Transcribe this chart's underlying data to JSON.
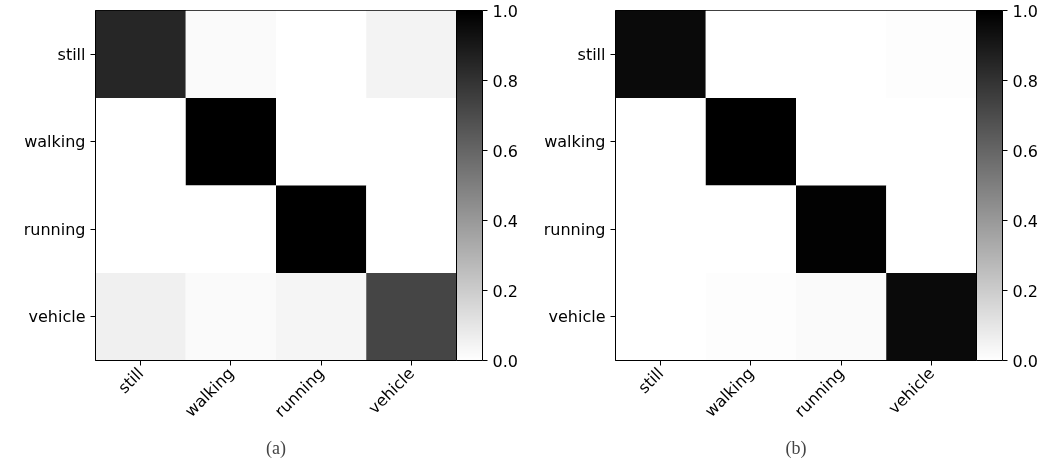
{
  "chart_data": [
    {
      "type": "heatmap",
      "categories": [
        "still",
        "walking",
        "running",
        "vehicle"
      ],
      "y_categories": [
        "still",
        "walking",
        "running",
        "vehicle"
      ],
      "cells": [
        [
          0.85,
          0.02,
          0.0,
          0.05
        ],
        [
          0.0,
          1.0,
          0.0,
          0.0
        ],
        [
          0.0,
          0.0,
          1.0,
          0.0
        ],
        [
          0.06,
          0.02,
          0.04,
          0.73
        ]
      ],
      "clim": [
        0.0,
        1.0
      ],
      "cticks": [
        {
          "value": 0.0,
          "label": "0.0"
        },
        {
          "value": 0.2,
          "label": "0.2"
        },
        {
          "value": 0.4,
          "label": "0.4"
        },
        {
          "value": 0.6,
          "label": "0.6"
        },
        {
          "value": 0.8,
          "label": "0.8"
        },
        {
          "value": 1.0,
          "label": "1.0"
        }
      ],
      "annotations": [
        "(a)"
      ]
    },
    {
      "type": "heatmap",
      "categories": [
        "still",
        "walking",
        "running",
        "vehicle"
      ],
      "y_categories": [
        "still",
        "walking",
        "running",
        "vehicle"
      ],
      "cells": [
        [
          0.96,
          0.0,
          0.0,
          0.01
        ],
        [
          0.0,
          1.0,
          0.0,
          0.0
        ],
        [
          0.0,
          0.0,
          0.99,
          0.0
        ],
        [
          0.0,
          0.01,
          0.02,
          0.96
        ]
      ],
      "clim": [
        0.0,
        1.0
      ],
      "cticks": [
        {
          "value": 0.0,
          "label": "0.0"
        },
        {
          "value": 0.2,
          "label": "0.2"
        },
        {
          "value": 0.4,
          "label": "0.4"
        },
        {
          "value": 0.6,
          "label": "0.6"
        },
        {
          "value": 0.8,
          "label": "0.8"
        },
        {
          "value": 1.0,
          "label": "1.0"
        }
      ],
      "annotations": [
        "(b)"
      ]
    }
  ]
}
